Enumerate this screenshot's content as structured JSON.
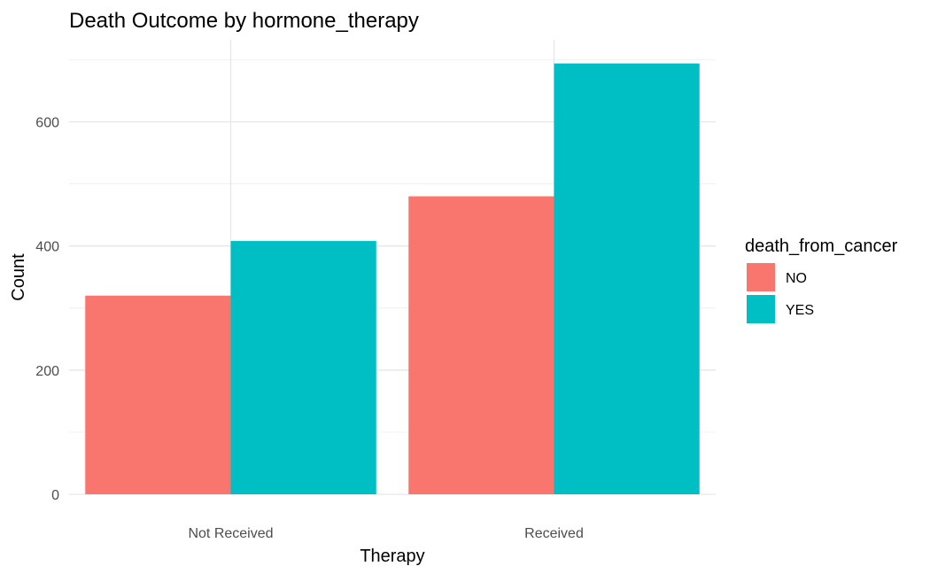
{
  "chart_data": {
    "type": "bar",
    "title": "Death Outcome by hormone_therapy",
    "xlabel": "Therapy",
    "ylabel": "Count",
    "categories": [
      "Not Received",
      "Received"
    ],
    "series": [
      {
        "name": "NO",
        "values": [
          320,
          480
        ],
        "color": "#F8766D"
      },
      {
        "name": "YES",
        "values": [
          408,
          694
        ],
        "color": "#00BFC4"
      }
    ],
    "legend_title": "death_from_cancer",
    "legend_position": "right",
    "ylim": [
      0,
      700
    ],
    "yticks": [
      0,
      200,
      400,
      600
    ],
    "grid": true
  }
}
